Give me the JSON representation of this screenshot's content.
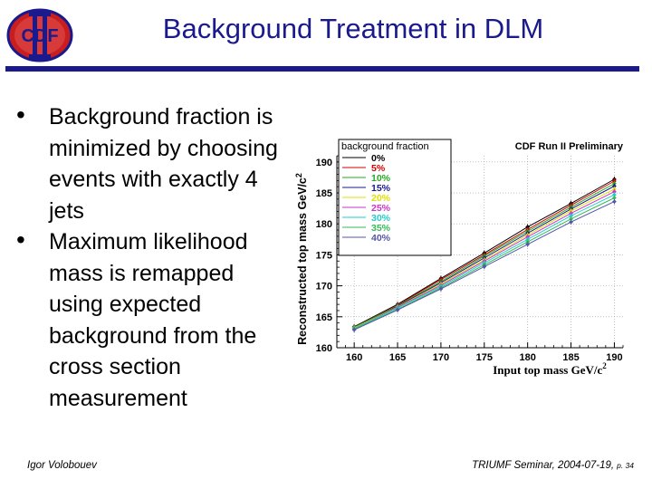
{
  "slide": {
    "title": "Background Treatment in DLM",
    "logo_text": "CDF",
    "bullets": [
      "Background fraction is minimized by choosing events with exactly 4 jets",
      "Maximum likelihood mass is remapped using expected background from the cross section measurement"
    ],
    "footer": {
      "author": "Igor Volobouev",
      "seminar": "TRIUMF Seminar, 2004-07-19,",
      "page": "p. 34"
    },
    "colors": {
      "title": "#1a1a8c",
      "rule": "#1a1a8c"
    }
  },
  "chart_data": {
    "type": "line",
    "title": "CDF Run II Preliminary",
    "xlabel": "Input top mass GeV/c",
    "xlabel_sup": "2",
    "ylabel": "Reconstructed top mass GeV/c",
    "ylabel_sup": "2",
    "xlim": [
      158,
      191
    ],
    "ylim": [
      160,
      191
    ],
    "xticks": [
      160,
      165,
      170,
      175,
      180,
      185,
      190
    ],
    "yticks": [
      160,
      165,
      170,
      175,
      180,
      185,
      190
    ],
    "x": [
      160,
      165,
      170,
      175,
      180,
      185,
      190
    ],
    "legend_title": "background fraction",
    "legend_position": "top-left",
    "series": [
      {
        "name": "0%",
        "color": "#000000",
        "values": [
          163.4,
          167.0,
          171.2,
          175.3,
          179.5,
          183.3,
          187.2
        ]
      },
      {
        "name": "5%",
        "color": "#d40000",
        "values": [
          163.3,
          166.9,
          171.0,
          175.0,
          179.1,
          183.0,
          186.9
        ]
      },
      {
        "name": "10%",
        "color": "#22aa22",
        "values": [
          163.3,
          166.8,
          170.7,
          174.8,
          178.8,
          182.7,
          186.5
        ]
      },
      {
        "name": "15%",
        "color": "#1a1a8c",
        "values": [
          163.2,
          166.7,
          170.5,
          174.5,
          178.5,
          182.4,
          186.1
        ]
      },
      {
        "name": "20%",
        "color": "#e0e000",
        "values": [
          163.2,
          166.6,
          170.3,
          174.2,
          178.2,
          182.1,
          185.6
        ]
      },
      {
        "name": "25%",
        "color": "#cc33cc",
        "values": [
          163.1,
          166.5,
          170.1,
          174.0,
          177.9,
          181.7,
          185.2
        ]
      },
      {
        "name": "30%",
        "color": "#22cccc",
        "values": [
          163.1,
          166.4,
          169.9,
          173.7,
          177.5,
          181.3,
          184.7
        ]
      },
      {
        "name": "35%",
        "color": "#33bb55",
        "values": [
          163.0,
          166.2,
          169.7,
          173.4,
          177.1,
          180.8,
          184.2
        ]
      },
      {
        "name": "40%",
        "color": "#5555aa",
        "values": [
          162.9,
          166.1,
          169.5,
          173.1,
          176.7,
          180.3,
          183.6
        ]
      }
    ]
  }
}
